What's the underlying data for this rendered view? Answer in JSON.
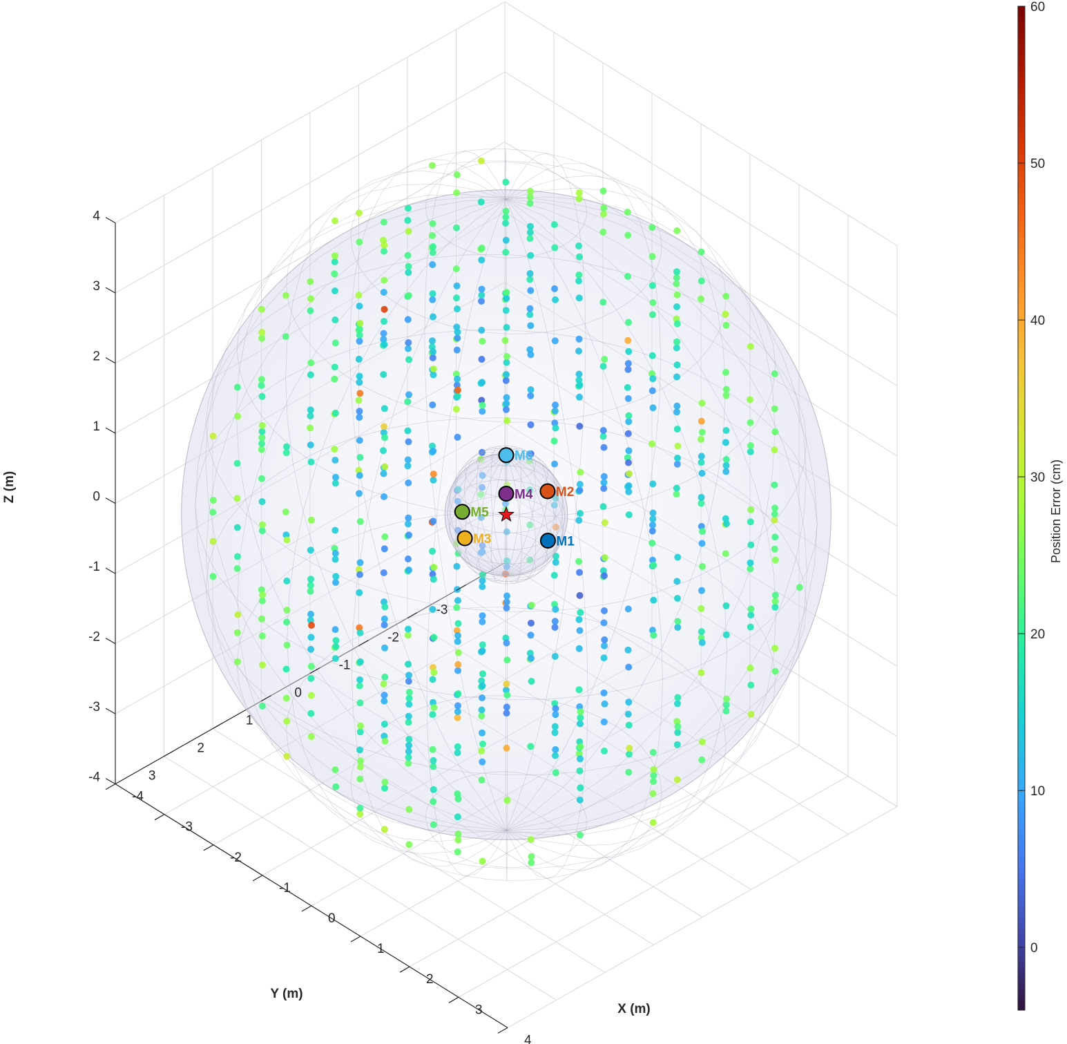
{
  "chart_data": {
    "type": "scatter3d",
    "title": "",
    "xlabel": "X (m)",
    "ylabel": "Y (m)",
    "zlabel": "Z (m)",
    "xlim": [
      -4,
      4
    ],
    "ylim": [
      -4,
      4
    ],
    "zlim": [
      -4,
      4
    ],
    "x_ticks": [
      -4,
      -3,
      -2,
      -1,
      0,
      1,
      2,
      3,
      4
    ],
    "y_ticks": [
      -3,
      -2,
      -1,
      0,
      1,
      2,
      3
    ],
    "z_ticks": [
      -4,
      -3,
      -2,
      -1,
      0,
      1,
      2,
      3,
      4
    ],
    "grid": true,
    "outer_sphere_radius_m": 4.5,
    "inner_sphere_radius_m": 0.85,
    "colorbar": {
      "label": "Position Error (cm)",
      "range": [
        -4,
        60
      ],
      "ticks": [
        0,
        10,
        20,
        30,
        40,
        50,
        60
      ]
    },
    "source": {
      "name": "source",
      "x": 0,
      "y": 0,
      "z": 0,
      "color": "#e8171c"
    },
    "microphones": [
      {
        "name": "M1",
        "x": 0.85,
        "y": 0,
        "z": 0,
        "color": "#0072bd"
      },
      {
        "name": "M2",
        "x": 0,
        "y": -0.85,
        "z": 0,
        "color": "#d95319"
      },
      {
        "name": "M3",
        "x": 0,
        "y": 0.85,
        "z": 0,
        "color": "#edb120"
      },
      {
        "name": "M4",
        "x": 0,
        "y": 0,
        "z": 0.3,
        "color": "#7e2f8e"
      },
      {
        "name": "M5",
        "x": -0.6,
        "y": 0.3,
        "z": -0.1,
        "color": "#77ac30"
      },
      {
        "name": "M6",
        "x": 0,
        "y": 0,
        "z": 0.85,
        "color": "#4dbeee"
      }
    ],
    "grid_points": {
      "description": "evaluation grid at 0.5 m spacing inside the outer sphere, coloured by position error",
      "spacing_m": 0.5,
      "error_range_cm": [
        2,
        58
      ]
    }
  }
}
